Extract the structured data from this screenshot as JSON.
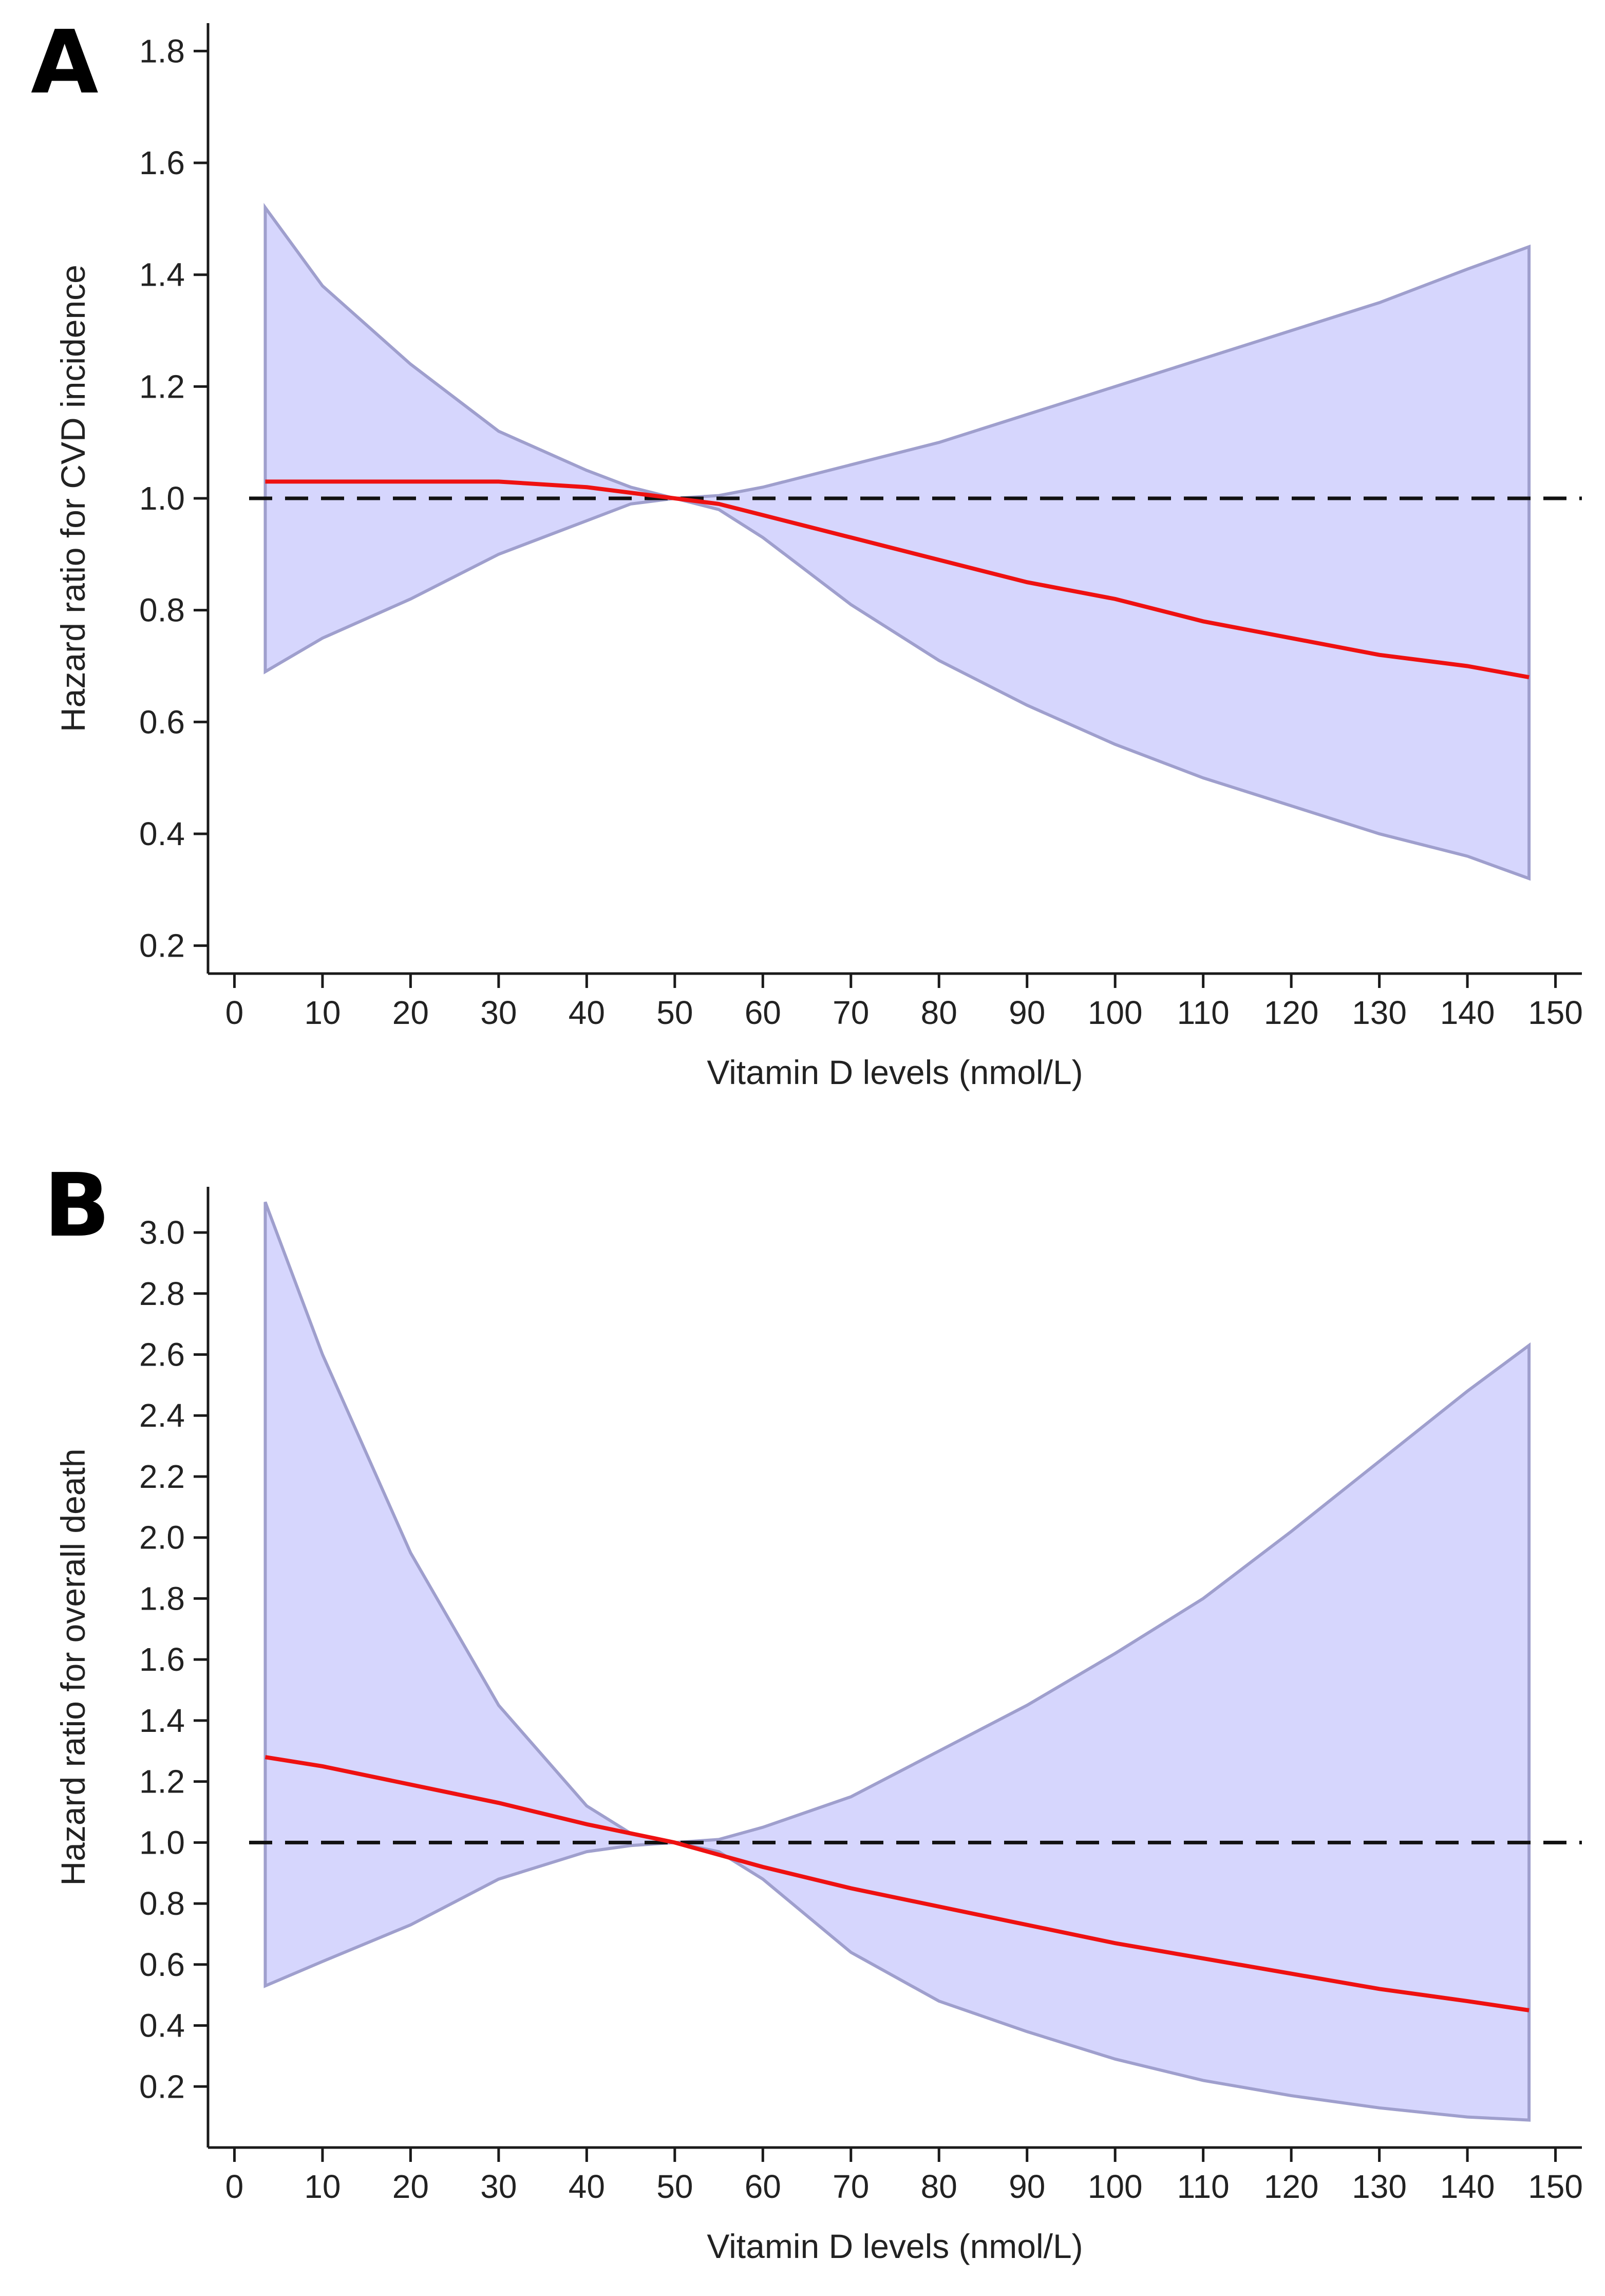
{
  "chart_data": [
    {
      "type": "line",
      "panel": "A",
      "title": "",
      "xlabel": "Vitamin D levels (nmol/L)",
      "ylabel": "Hazard ratio for CVD incidence",
      "xlim": [
        -3,
        153
      ],
      "ylim": [
        0.15,
        1.85
      ],
      "xticks": [
        0,
        10,
        20,
        30,
        40,
        50,
        60,
        70,
        80,
        90,
        100,
        110,
        120,
        130,
        140,
        150
      ],
      "xtick_labels": [
        "0",
        "10",
        "20",
        "30",
        "40",
        "50",
        "60",
        "70",
        "80",
        "90",
        "100",
        "110",
        "120",
        "130",
        "140",
        "150"
      ],
      "yticks": [
        0.2,
        0.4,
        0.6,
        0.8,
        1.0,
        1.2,
        1.4,
        1.6,
        1.8
      ],
      "ytick_labels": [
        "0.2",
        "0.4",
        "0.6",
        "0.8",
        "1.0",
        "1.2",
        "1.4",
        "1.6",
        "1.8"
      ],
      "reference_line": 1.0,
      "x": [
        3.5,
        10,
        20,
        30,
        40,
        45,
        50,
        55,
        60,
        70,
        80,
        90,
        100,
        110,
        120,
        130,
        140,
        147
      ],
      "series": [
        {
          "name": "Hazard ratio",
          "color": "#ee1111",
          "values": [
            1.03,
            1.03,
            1.03,
            1.03,
            1.02,
            1.01,
            1.0,
            0.99,
            0.97,
            0.93,
            0.89,
            0.85,
            0.82,
            0.78,
            0.75,
            0.72,
            0.7,
            0.68
          ]
        },
        {
          "name": "Upper 95% CI",
          "color": "#9f9fcd",
          "values": [
            1.52,
            1.38,
            1.24,
            1.12,
            1.05,
            1.02,
            1.0,
            1.005,
            1.02,
            1.06,
            1.1,
            1.15,
            1.2,
            1.25,
            1.3,
            1.35,
            1.41,
            1.45
          ]
        },
        {
          "name": "Lower 95% CI",
          "color": "#9f9fcd",
          "values": [
            0.69,
            0.75,
            0.82,
            0.9,
            0.96,
            0.99,
            1.0,
            0.98,
            0.93,
            0.81,
            0.71,
            0.63,
            0.56,
            0.5,
            0.45,
            0.4,
            0.36,
            0.32
          ]
        }
      ]
    },
    {
      "type": "line",
      "panel": "B",
      "title": "",
      "xlabel": "Vitamin D levels (nmol/L)",
      "ylabel": "Hazard ratio for overall death",
      "xlim": [
        -3,
        153
      ],
      "ylim": [
        0.0,
        3.15
      ],
      "xticks": [
        0,
        10,
        20,
        30,
        40,
        50,
        60,
        70,
        80,
        90,
        100,
        110,
        120,
        130,
        140,
        150
      ],
      "xtick_labels": [
        "0",
        "10",
        "20",
        "30",
        "40",
        "50",
        "60",
        "70",
        "80",
        "90",
        "100",
        "110",
        "120",
        "130",
        "140",
        "150"
      ],
      "yticks": [
        0.2,
        0.4,
        0.6,
        0.8,
        1.0,
        1.2,
        1.4,
        1.6,
        1.8,
        2.0,
        2.2,
        2.4,
        2.6,
        2.8,
        3.0
      ],
      "ytick_labels": [
        "0.2",
        "0.4",
        "0.6",
        "0.8",
        "1.0",
        "1.2",
        "1.4",
        "1.6",
        "1.8",
        "2.0",
        "2.2",
        "2.4",
        "2.6",
        "2.8",
        "3.0"
      ],
      "reference_line": 1.0,
      "x": [
        3.5,
        10,
        20,
        30,
        40,
        45,
        50,
        55,
        60,
        70,
        80,
        90,
        100,
        110,
        120,
        130,
        140,
        147
      ],
      "series": [
        {
          "name": "Hazard ratio",
          "color": "#ee1111",
          "values": [
            1.28,
            1.25,
            1.19,
            1.13,
            1.06,
            1.03,
            1.0,
            0.96,
            0.92,
            0.85,
            0.79,
            0.73,
            0.67,
            0.62,
            0.57,
            0.52,
            0.48,
            0.45
          ]
        },
        {
          "name": "Upper 95% CI",
          "color": "#9f9fcd",
          "values": [
            3.1,
            2.6,
            1.95,
            1.45,
            1.12,
            1.03,
            1.0,
            1.01,
            1.05,
            1.15,
            1.3,
            1.45,
            1.62,
            1.8,
            2.02,
            2.25,
            2.48,
            2.63
          ]
        },
        {
          "name": "Lower 95% CI",
          "color": "#9f9fcd",
          "values": [
            0.53,
            0.61,
            0.73,
            0.88,
            0.97,
            0.99,
            1.0,
            0.97,
            0.88,
            0.64,
            0.48,
            0.38,
            0.29,
            0.22,
            0.17,
            0.13,
            0.1,
            0.09
          ]
        }
      ]
    }
  ]
}
